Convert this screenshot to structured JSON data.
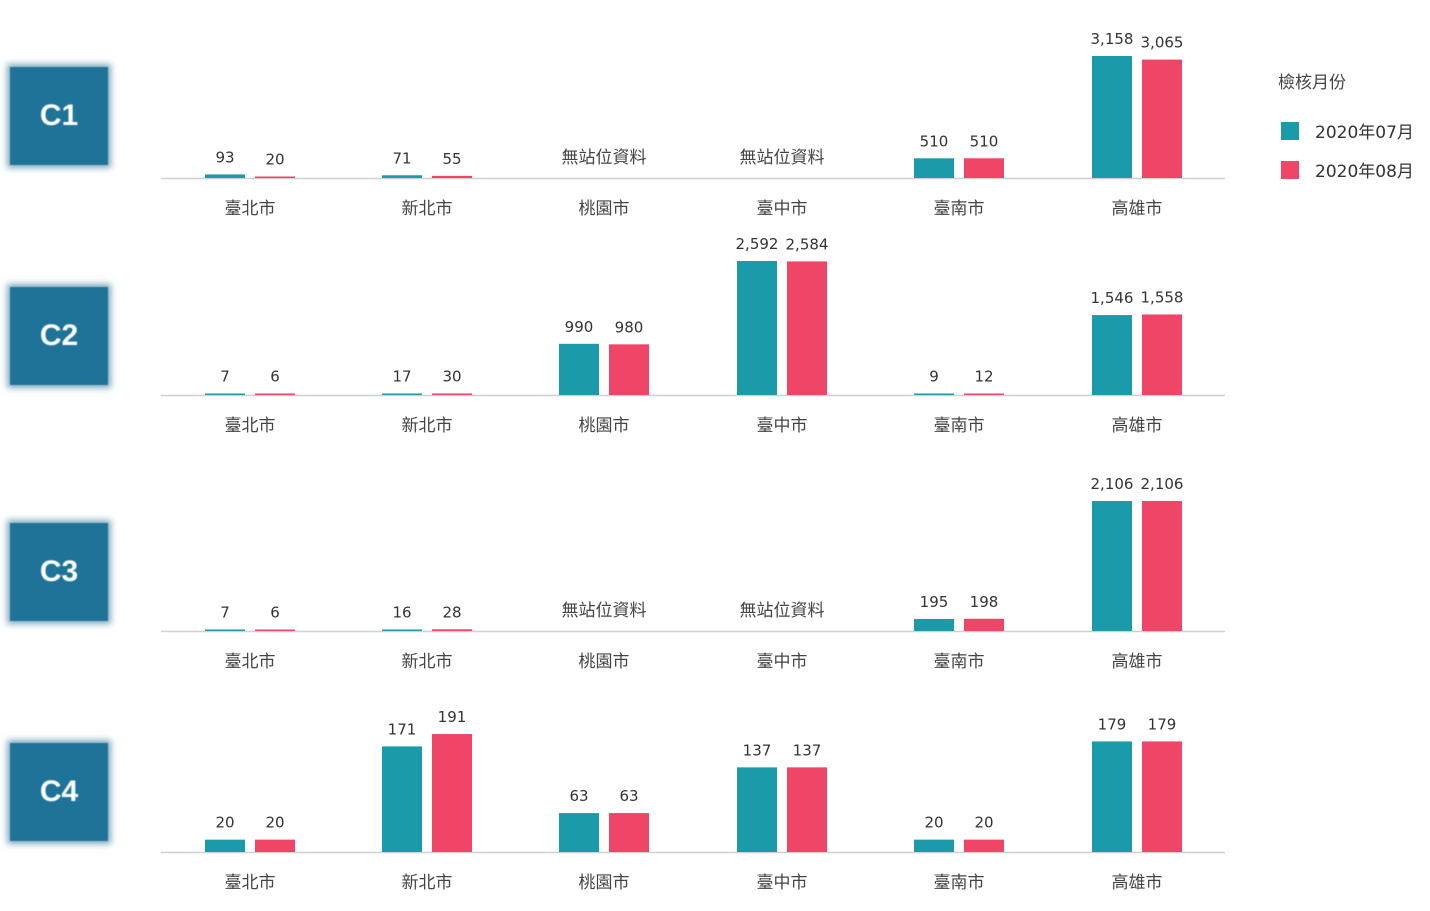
{
  "colors": {
    "series_1": "#1b9aaa",
    "series_2": "#ef4668",
    "badge": "#1f7398",
    "axis": "#d0d0d0"
  },
  "legend": {
    "title": "檢核月份",
    "items": [
      {
        "label": "2020年07月",
        "color": "#1b9aaa"
      },
      {
        "label": "2020年08月",
        "color": "#ef4668"
      }
    ]
  },
  "chart_data": [
    {
      "type": "bar",
      "row_label": "C1",
      "categories": [
        "臺北市",
        "新北市",
        "桃園市",
        "臺中市",
        "臺南市",
        "高雄市"
      ],
      "series": [
        {
          "name": "2020年07月",
          "values": [
            93,
            71,
            null,
            null,
            510,
            3158
          ]
        },
        {
          "name": "2020年08月",
          "values": [
            20,
            55,
            null,
            null,
            510,
            3065
          ]
        }
      ],
      "no_data_label": "無站位資料",
      "ylim": [
        0,
        3158
      ]
    },
    {
      "type": "bar",
      "row_label": "C2",
      "categories": [
        "臺北市",
        "新北市",
        "桃園市",
        "臺中市",
        "臺南市",
        "高雄市"
      ],
      "series": [
        {
          "name": "2020年07月",
          "values": [
            7,
            17,
            990,
            2592,
            9,
            1546
          ]
        },
        {
          "name": "2020年08月",
          "values": [
            6,
            30,
            980,
            2584,
            12,
            1558
          ]
        }
      ],
      "ylim": [
        0,
        2592
      ]
    },
    {
      "type": "bar",
      "row_label": "C3",
      "categories": [
        "臺北市",
        "新北市",
        "桃園市",
        "臺中市",
        "臺南市",
        "高雄市"
      ],
      "series": [
        {
          "name": "2020年07月",
          "values": [
            7,
            16,
            null,
            null,
            195,
            2106
          ]
        },
        {
          "name": "2020年08月",
          "values": [
            6,
            28,
            null,
            null,
            198,
            2106
          ]
        }
      ],
      "no_data_label": "無站位資料",
      "ylim": [
        0,
        2106
      ]
    },
    {
      "type": "bar",
      "row_label": "C4",
      "categories": [
        "臺北市",
        "新北市",
        "桃園市",
        "臺中市",
        "臺南市",
        "高雄市"
      ],
      "series": [
        {
          "name": "2020年07月",
          "values": [
            20,
            171,
            63,
            137,
            20,
            179
          ]
        },
        {
          "name": "2020年08月",
          "values": [
            20,
            191,
            63,
            137,
            20,
            179
          ]
        }
      ],
      "ylim": [
        0,
        191
      ]
    }
  ]
}
